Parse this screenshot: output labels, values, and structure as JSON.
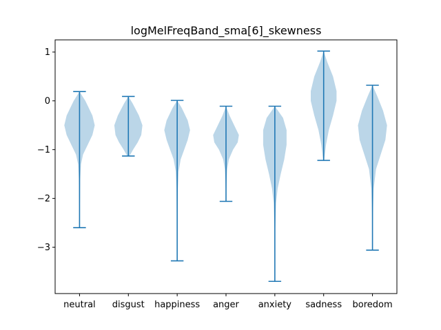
{
  "chart_data": {
    "type": "violin",
    "title": "logMelFreqBand_sma[6]_skewness",
    "xlabel": "",
    "ylabel": "",
    "categories": [
      "neutral",
      "disgust",
      "happiness",
      "anger",
      "anxiety",
      "sadness",
      "boredom"
    ],
    "ylim": [
      -3.95,
      1.25
    ],
    "yticks": [
      1,
      0,
      -1,
      -2,
      -3
    ],
    "ytick_labels": [
      "1",
      "0",
      "−1",
      "−2",
      "−3"
    ],
    "colors": {
      "body": "#1f77b4",
      "body_alpha": 0.3,
      "lines": "#1f77b4"
    },
    "violins": [
      {
        "category": "neutral",
        "min": -2.6,
        "max": 0.19,
        "profile": [
          [
            0.19,
            0.0
          ],
          [
            0.0,
            0.25
          ],
          [
            -0.3,
            0.55
          ],
          [
            -0.5,
            0.65
          ],
          [
            -0.7,
            0.55
          ],
          [
            -0.9,
            0.35
          ],
          [
            -1.1,
            0.15
          ],
          [
            -1.3,
            0.06
          ],
          [
            -1.6,
            0.03
          ],
          [
            -2.0,
            0.02
          ],
          [
            -2.3,
            0.01
          ],
          [
            -2.6,
            0.0
          ]
        ]
      },
      {
        "category": "disgust",
        "min": -1.13,
        "max": 0.09,
        "profile": [
          [
            0.09,
            0.0
          ],
          [
            -0.05,
            0.18
          ],
          [
            -0.3,
            0.45
          ],
          [
            -0.5,
            0.6
          ],
          [
            -0.7,
            0.55
          ],
          [
            -0.85,
            0.4
          ],
          [
            -1.0,
            0.2
          ],
          [
            -1.13,
            0.05
          ]
        ]
      },
      {
        "category": "happiness",
        "min": -3.28,
        "max": 0.01,
        "profile": [
          [
            0.01,
            0.0
          ],
          [
            -0.15,
            0.2
          ],
          [
            -0.4,
            0.45
          ],
          [
            -0.6,
            0.55
          ],
          [
            -0.8,
            0.45
          ],
          [
            -1.0,
            0.3
          ],
          [
            -1.2,
            0.15
          ],
          [
            -1.45,
            0.06
          ],
          [
            -1.8,
            0.03
          ],
          [
            -2.3,
            0.02
          ],
          [
            -2.8,
            0.01
          ],
          [
            -3.28,
            0.0
          ]
        ]
      },
      {
        "category": "anger",
        "min": -2.06,
        "max": -0.11,
        "profile": [
          [
            -0.11,
            0.0
          ],
          [
            -0.3,
            0.15
          ],
          [
            -0.5,
            0.35
          ],
          [
            -0.7,
            0.55
          ],
          [
            -0.85,
            0.5
          ],
          [
            -1.0,
            0.3
          ],
          [
            -1.2,
            0.12
          ],
          [
            -1.4,
            0.05
          ],
          [
            -1.7,
            0.02
          ],
          [
            -2.06,
            0.0
          ]
        ]
      },
      {
        "category": "anxiety",
        "min": -3.7,
        "max": -0.11,
        "profile": [
          [
            -0.11,
            0.0
          ],
          [
            -0.35,
            0.35
          ],
          [
            -0.6,
            0.5
          ],
          [
            -0.9,
            0.5
          ],
          [
            -1.2,
            0.4
          ],
          [
            -1.5,
            0.25
          ],
          [
            -1.8,
            0.12
          ],
          [
            -2.1,
            0.05
          ],
          [
            -2.6,
            0.02
          ],
          [
            -3.2,
            0.01
          ],
          [
            -3.7,
            0.0
          ]
        ]
      },
      {
        "category": "sadness",
        "min": -1.22,
        "max": 1.02,
        "profile": [
          [
            1.02,
            0.0
          ],
          [
            0.8,
            0.15
          ],
          [
            0.5,
            0.4
          ],
          [
            0.2,
            0.55
          ],
          [
            0.0,
            0.55
          ],
          [
            -0.3,
            0.4
          ],
          [
            -0.6,
            0.22
          ],
          [
            -0.9,
            0.1
          ],
          [
            -1.22,
            0.02
          ]
        ]
      },
      {
        "category": "boredom",
        "min": -3.06,
        "max": 0.32,
        "profile": [
          [
            0.32,
            0.0
          ],
          [
            0.1,
            0.2
          ],
          [
            -0.2,
            0.45
          ],
          [
            -0.5,
            0.62
          ],
          [
            -0.8,
            0.55
          ],
          [
            -1.1,
            0.35
          ],
          [
            -1.4,
            0.15
          ],
          [
            -1.8,
            0.05
          ],
          [
            -2.3,
            0.02
          ],
          [
            -2.7,
            0.01
          ],
          [
            -3.06,
            0.0
          ]
        ]
      }
    ]
  }
}
